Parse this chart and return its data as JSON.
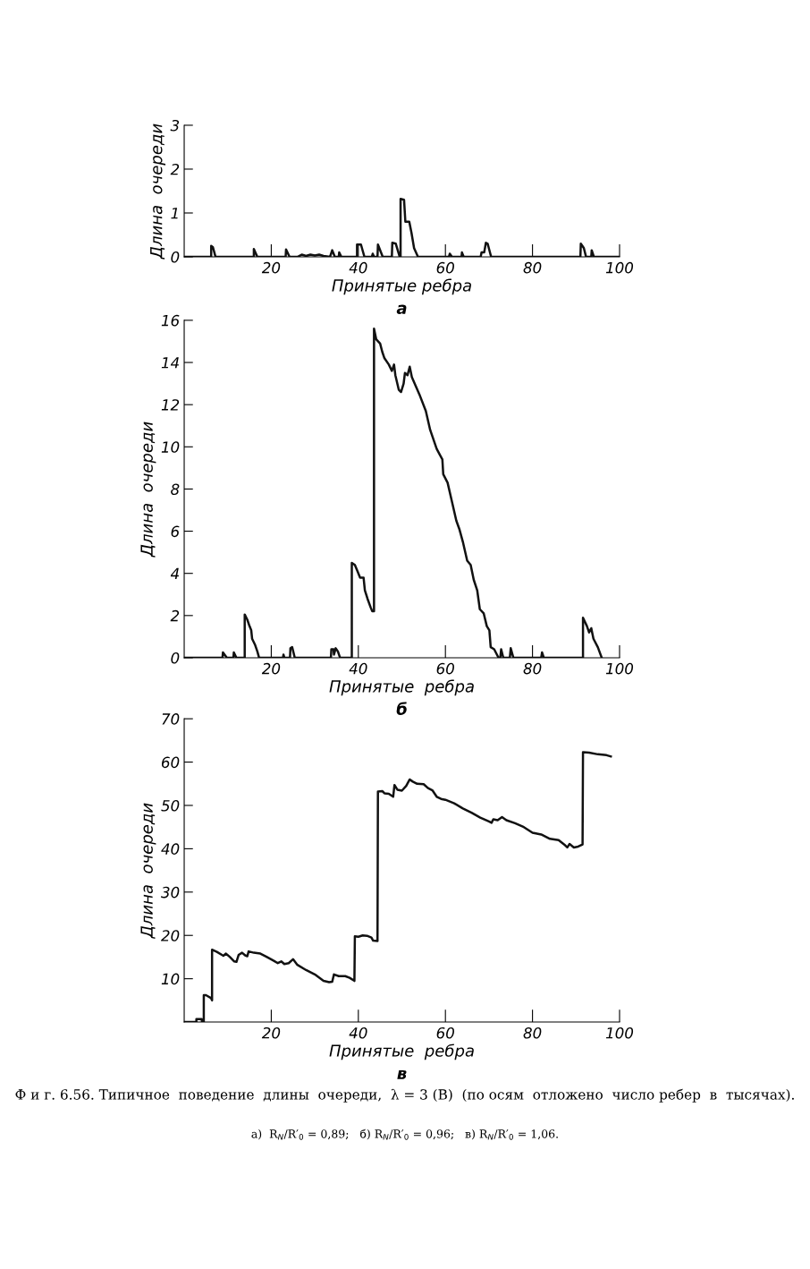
{
  "chart_data": [
    {
      "type": "line",
      "subtitle": "а",
      "xlabel": "Принятые ребра",
      "ylabel": "Длина  очереди",
      "xlim": [
        0,
        100
      ],
      "ylim": [
        0,
        3
      ],
      "xticks": [
        20,
        40,
        60,
        80,
        100
      ],
      "yticks": [
        0,
        1,
        2,
        3
      ],
      "grid": false,
      "line_style": "solid",
      "series": [
        {
          "color": "#111111",
          "x": [
            0,
            6.2,
            6.2,
            6.6,
            7.2,
            16,
            16,
            16.8,
            23.3,
            23.4,
            24.2,
            26,
            27,
            28,
            29,
            30,
            31,
            32,
            33.5,
            34,
            34.6,
            35.5,
            35.6,
            36.1,
            39.7,
            39.7,
            40.6,
            41.4,
            43.1,
            43.3,
            43.6,
            44.4,
            44.5,
            45.6,
            47.7,
            47.8,
            48.6,
            49.5,
            49.7,
            49.7,
            50.5,
            50.8,
            51.7,
            52.2,
            52.8,
            53.7,
            60.8,
            61,
            61.5,
            63.7,
            63.8,
            64.2,
            68.1,
            68.3,
            68.9,
            69.3,
            69.7,
            70.5,
            91,
            91.1,
            91.8,
            92.3,
            93.5,
            93.6,
            94.1,
            100
          ],
          "values": [
            0,
            0,
            0.25,
            0.22,
            0,
            0,
            0.18,
            0,
            0,
            0.17,
            0,
            0,
            0.05,
            0.02,
            0.05,
            0.03,
            0.05,
            0.02,
            0,
            0.15,
            0,
            0,
            0.1,
            0,
            0,
            0.28,
            0.28,
            0,
            0,
            0.07,
            0,
            0,
            0.28,
            0,
            0,
            0.32,
            0.3,
            0,
            0,
            1.32,
            1.3,
            0.8,
            0.8,
            0.55,
            0.2,
            0,
            0,
            0.07,
            0,
            0,
            0.1,
            0,
            0,
            0.1,
            0.1,
            0.32,
            0.3,
            0,
            0,
            0.3,
            0.2,
            0,
            0,
            0.15,
            0,
            0
          ]
        }
      ]
    },
    {
      "type": "line",
      "subtitle": "б",
      "xlabel": "Принятые  ребра",
      "ylabel": "Длина  очереди",
      "xlim": [
        0,
        100
      ],
      "ylim": [
        0,
        16
      ],
      "xticks": [
        20,
        40,
        60,
        80,
        100
      ],
      "yticks": [
        0,
        2,
        4,
        6,
        8,
        10,
        12,
        14,
        16
      ],
      "grid": false,
      "line_style": "solid",
      "series": [
        {
          "color": "#111111",
          "x": [
            0,
            8.8,
            8.9,
            9.8,
            11.3,
            11.4,
            12,
            13.9,
            13.9,
            14.5,
            15,
            15.4,
            15.6,
            16.3,
            16.8,
            17.2,
            22.7,
            22.8,
            23,
            24.3,
            24.4,
            24.8,
            25.4,
            33.7,
            33.8,
            34.3,
            34.4,
            34.8,
            35.3,
            35.8,
            38.5,
            38.5,
            39.2,
            39.8,
            40.4,
            41.2,
            41.5,
            42.1,
            42.8,
            43.2,
            43.6,
            43.6,
            44.1,
            45,
            45.5,
            46,
            47,
            47.7,
            48.2,
            48.5,
            49.3,
            49.8,
            50.4,
            50.7,
            51.3,
            51.8,
            52.3,
            54,
            55.5,
            56.5,
            58,
            59.3,
            59.5,
            60.5,
            61.5,
            62.5,
            63.2,
            64,
            65,
            65.8,
            66.5,
            67.3,
            67.9,
            68.8,
            69.5,
            70.1,
            70.4,
            71.2,
            72.2,
            72.6,
            72.8,
            73.3,
            74.8,
            75,
            75.6,
            82,
            82.2,
            82.6,
            91.6,
            91.6,
            92.5,
            93,
            93.5,
            94,
            95,
            95.9
          ],
          "values": [
            0,
            0,
            0.25,
            0,
            0,
            0.25,
            0,
            0,
            2.05,
            1.8,
            1.5,
            1.3,
            0.9,
            0.6,
            0.3,
            0,
            0,
            0.15,
            0,
            0,
            0.45,
            0.5,
            0,
            0,
            0.4,
            0.4,
            0.15,
            0.45,
            0.3,
            0,
            0,
            4.5,
            4.4,
            4.1,
            3.8,
            3.8,
            3.2,
            2.8,
            2.4,
            2.2,
            2.2,
            15.6,
            15.1,
            14.9,
            14.5,
            14.2,
            13.9,
            13.6,
            13.9,
            13.4,
            12.7,
            12.6,
            13,
            13.5,
            13.4,
            13.8,
            13.3,
            12.5,
            11.7,
            10.8,
            9.9,
            9.4,
            8.7,
            8.3,
            7.4,
            6.5,
            6.1,
            5.5,
            4.6,
            4.4,
            3.7,
            3.2,
            2.3,
            2.1,
            1.5,
            1.3,
            0.5,
            0.4,
            0,
            0,
            0.4,
            0,
            0,
            0.45,
            0,
            0,
            0.25,
            0,
            0,
            1.9,
            1.5,
            1.2,
            1.4,
            0.9,
            0.5,
            0
          ]
        }
      ]
    },
    {
      "type": "line",
      "subtitle": "в",
      "xlabel": "Принятые  ребра",
      "ylabel": "Длина  очереди",
      "xlim": [
        0,
        100
      ],
      "ylim": [
        0,
        70
      ],
      "xticks": [
        20,
        40,
        60,
        80,
        100
      ],
      "yticks": [
        10,
        20,
        30,
        40,
        50,
        60,
        70
      ],
      "grid": false,
      "line_style": "solid",
      "annotations": [
        "Ф и г. 6.56. Типичное  поведение  длины  очереди,  λ = 3 (B)  (по осям  отложено  число ребер  в  тысячах).",
        "а)  R$_{N}$/R′$_{0}$ = 0,89;   б) R$_{N}$/R′$_{0}$ = 0,96;   в) R$_{N}$/R′$_{0}$ = 1,06."
      ],
      "series": [
        {
          "color": "#111111",
          "x": [
            0,
            2.8,
            2.8,
            4,
            4.1,
            4.5,
            4.5,
            5,
            6.2,
            6.4,
            6.4,
            7.5,
            9,
            9.6,
            10.5,
            11.5,
            12,
            12.5,
            13.3,
            14,
            14.5,
            14.8,
            16,
            17.5,
            19,
            20.5,
            21.5,
            22.3,
            23,
            24,
            25,
            26,
            28,
            30,
            32,
            33.3,
            34,
            34.4,
            35.5,
            37,
            38,
            39.1,
            39.2,
            40,
            41,
            42,
            43,
            43.4,
            44.4,
            44.5,
            45.5,
            46,
            47,
            48,
            48.3,
            49,
            50,
            51,
            51.8,
            52.5,
            53.5,
            55,
            56,
            57,
            58,
            59,
            60,
            62,
            64,
            66,
            68,
            70,
            70.6,
            71,
            72,
            73,
            74,
            76,
            78,
            80,
            82,
            84,
            86,
            87.5,
            88,
            88.5,
            89.5,
            90.5,
            91.5,
            91.6,
            93,
            95,
            97,
            98
          ],
          "values": [
            0,
            0,
            0.7,
            0.7,
            0,
            0,
            6.2,
            6.2,
            5.5,
            5,
            16.7,
            16.2,
            15.3,
            15.8,
            15,
            14,
            13.9,
            15.5,
            16,
            15.4,
            15.2,
            16.3,
            16,
            15.8,
            15,
            14.2,
            13.6,
            14,
            13.4,
            13.6,
            14.5,
            13.2,
            12,
            11,
            9.5,
            9.2,
            9.3,
            11,
            10.6,
            10.6,
            10.2,
            9.5,
            19.8,
            19.7,
            20,
            19.9,
            19.5,
            18.8,
            18.7,
            53.2,
            53.3,
            52.8,
            52.7,
            52,
            54.7,
            53.6,
            53.4,
            54.5,
            56,
            55.5,
            55,
            54.9,
            54,
            53.5,
            52,
            51.5,
            51.3,
            50.5,
            49.3,
            48.3,
            47.2,
            46.3,
            46,
            46.8,
            46.6,
            47.3,
            46.6,
            45.9,
            45,
            43.7,
            43.3,
            42.3,
            42,
            40.8,
            40.3,
            41.1,
            40.3,
            40.5,
            41,
            62.3,
            62.2,
            61.8,
            61.6,
            61.3
          ]
        }
      ]
    }
  ]
}
